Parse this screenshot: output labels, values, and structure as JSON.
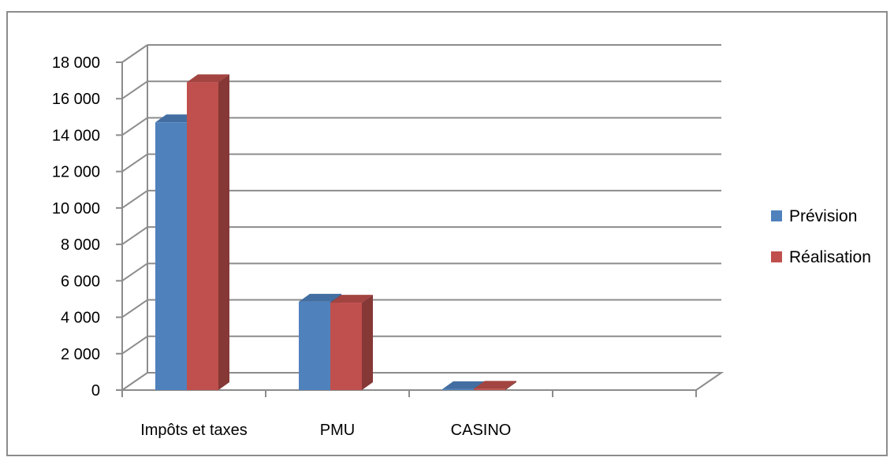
{
  "chart_data": {
    "type": "bar",
    "title": "",
    "xlabel": "",
    "ylabel": "",
    "categories": [
      "Impôts et taxes",
      "PMU",
      "CASINO"
    ],
    "series": [
      {
        "name": "Prévision",
        "values": [
          14700,
          4850,
          50
        ],
        "color": "#4F81BD"
      },
      {
        "name": "Réalisation",
        "values": [
          16900,
          4800,
          70
        ],
        "color": "#C0504D"
      }
    ],
    "ylim": [
      0,
      18000
    ],
    "y_ticks": [
      "0",
      "2 000",
      "4 000",
      "6 000",
      "8 000",
      "10 000",
      "12 000",
      "14 000",
      "16 000",
      "18 000"
    ],
    "y_tick_values": [
      0,
      2000,
      4000,
      6000,
      8000,
      10000,
      12000,
      14000,
      16000,
      18000
    ],
    "grid": true,
    "style": "3d-clustered-column",
    "legend_position": "right"
  }
}
